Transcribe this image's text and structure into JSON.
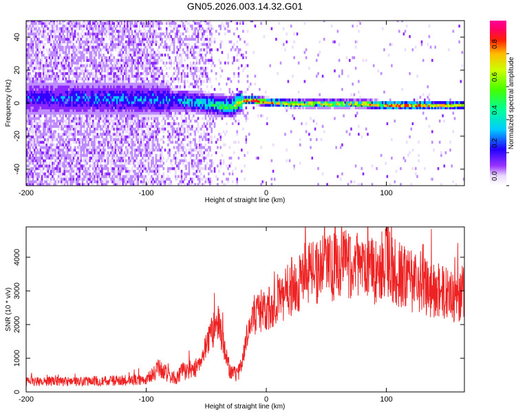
{
  "title": "GN05.2026.003.14.32.G01",
  "chart_data": [
    {
      "type": "heatmap",
      "xlabel": "Height of straight line (km)",
      "ylabel": "Frequency (Hz)",
      "xlim": [
        -200,
        165
      ],
      "ylim": [
        -50,
        50
      ],
      "xticks": [
        -200,
        -100,
        0,
        100
      ],
      "xtick_labels": [
        "-200",
        "-100",
        "0",
        "100"
      ],
      "yticks": [
        40,
        20,
        0,
        -20,
        -40
      ],
      "ytick_labels": [
        "40",
        "20",
        "0",
        "-20",
        "-40"
      ],
      "ridge": {
        "x": [
          -200,
          -120,
          -80,
          -60,
          -40,
          -30,
          -20,
          -10,
          0,
          20,
          50,
          80,
          100,
          130,
          165
        ],
        "freq": [
          2,
          2,
          1,
          0,
          -2,
          -3,
          1,
          1,
          0,
          -1,
          -1,
          -1,
          -2,
          -2,
          -2
        ],
        "amplitude": [
          0.3,
          0.35,
          0.35,
          0.4,
          0.55,
          0.6,
          0.8,
          0.95,
          0.75,
          0.7,
          0.7,
          0.75,
          0.8,
          0.75,
          0.7
        ]
      },
      "colorbar": {
        "label": "Normalized spectral amplitude",
        "range": [
          0.0,
          1.0
        ],
        "ticks": [
          0.0,
          0.2,
          0.4,
          0.6,
          0.8
        ],
        "tick_labels": [
          "0.0",
          "0.2",
          "0.4",
          "0.6",
          "0.8"
        ]
      }
    },
    {
      "type": "line",
      "xlabel": "Height of straight line (km)",
      "ylabel": "SNR (10 * v/v)",
      "xlim": [
        -200,
        165
      ],
      "ylim": [
        0,
        4900
      ],
      "xticks": [
        -200,
        -100,
        0,
        100
      ],
      "xtick_labels": [
        "-200",
        "-100",
        "0",
        "100"
      ],
      "yticks": [
        0,
        1000,
        2000,
        3000,
        4000
      ],
      "ytick_labels": [
        "0",
        "1000",
        "2000",
        "3000",
        "4000"
      ],
      "color": "#ee2222",
      "series": [
        {
          "name": "SNR",
          "x": [
            -200,
            -180,
            -160,
            -140,
            -120,
            -100,
            -95,
            -90,
            -85,
            -80,
            -75,
            -70,
            -65,
            -60,
            -55,
            -50,
            -45,
            -40,
            -35,
            -30,
            -25,
            -20,
            -15,
            -10,
            -5,
            0,
            5,
            10,
            15,
            20,
            25,
            30,
            35,
            40,
            45,
            50,
            55,
            60,
            65,
            70,
            75,
            80,
            85,
            90,
            95,
            100,
            105,
            110,
            115,
            120,
            125,
            130,
            135,
            140,
            145,
            150,
            155,
            160,
            165
          ],
          "y": [
            300,
            320,
            300,
            330,
            340,
            360,
            500,
            700,
            600,
            450,
            400,
            600,
            650,
            700,
            900,
            1400,
            1800,
            2000,
            1300,
            600,
            500,
            900,
            1800,
            2300,
            2400,
            2300,
            2600,
            2800,
            2900,
            3100,
            3200,
            3400,
            3600,
            3500,
            3600,
            3700,
            3700,
            3800,
            3900,
            3800,
            3700,
            3800,
            3700,
            3600,
            3700,
            3900,
            3700,
            3500,
            3400,
            3300,
            3200,
            3100,
            3100,
            3000,
            3000,
            2900,
            2800,
            2800,
            3000
          ]
        }
      ]
    }
  ]
}
